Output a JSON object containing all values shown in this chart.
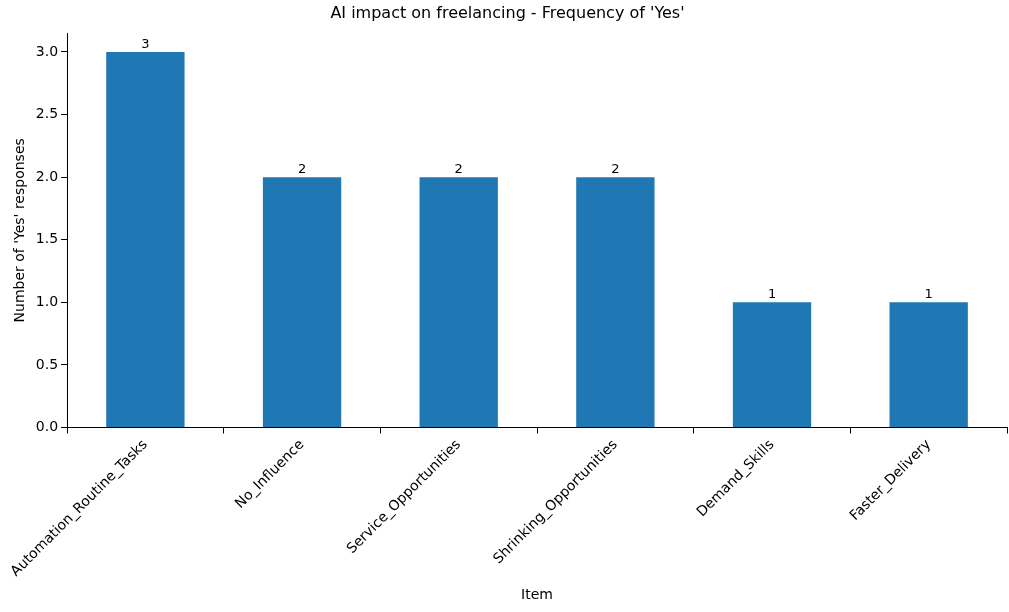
{
  "chart_data": {
    "type": "bar",
    "title": "AI impact on freelancing - Frequency of 'Yes'",
    "xlabel": "Item",
    "ylabel": "Number of 'Yes' responses",
    "categories": [
      "Automation_Routine_Tasks",
      "No_Influence",
      "Service_Opportunities",
      "Shrinking_Opportunities",
      "Demand_Skills",
      "Faster_Delivery"
    ],
    "values": [
      3,
      2,
      2,
      2,
      1,
      1
    ],
    "color": "#1f77b4",
    "ylim": [
      0,
      3.15
    ],
    "yticks": [
      {
        "value": 0,
        "label": "0.0"
      },
      {
        "value": 0.5,
        "label": "0.5"
      },
      {
        "value": 1,
        "label": "1.0"
      },
      {
        "value": 1.5,
        "label": "1.5"
      },
      {
        "value": 2,
        "label": "2.0"
      },
      {
        "value": 2.5,
        "label": "2.5"
      },
      {
        "value": 3,
        "label": "3.0"
      }
    ],
    "data_labels": true,
    "grid": false,
    "legend": false
  }
}
